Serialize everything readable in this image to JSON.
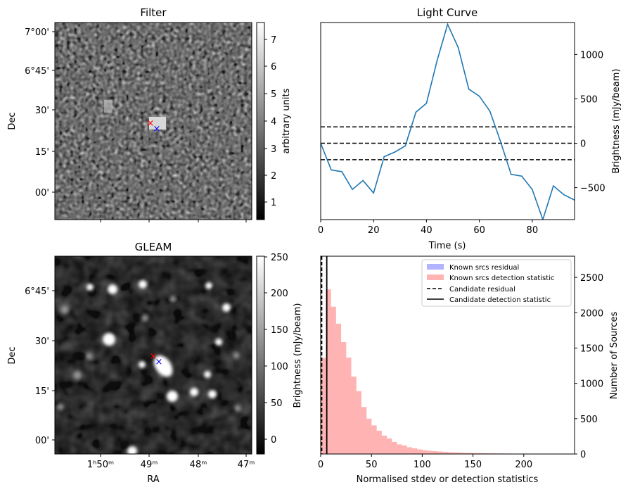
{
  "figure": {
    "filter_panel": {
      "title": "Filter",
      "ylabel": "Dec",
      "yticks": [
        "7°00'",
        "6°45'",
        "30'",
        "15'",
        "00'"
      ],
      "colorbar": {
        "label": "arbitrary units",
        "ticks": [
          "1",
          "2",
          "3",
          "4",
          "5",
          "6",
          "7"
        ],
        "range": [
          0.3,
          7.6
        ]
      },
      "markers": [
        {
          "symbol": "×",
          "color": "#ff0000"
        },
        {
          "symbol": "×",
          "color": "#0000ff"
        }
      ]
    },
    "gleam_panel": {
      "title": "GLEAM",
      "xlabel": "RA",
      "ylabel": "Dec",
      "xticks": [
        "1ʰ50ᵐ",
        "49ᵐ",
        "48ᵐ",
        "47ᵐ"
      ],
      "yticks": [
        "6°45'",
        "30'",
        "15'",
        "00'"
      ],
      "colorbar": {
        "label": "Brightness (mJy/beam)",
        "ticks": [
          "0",
          "50",
          "100",
          "150",
          "200",
          "250"
        ],
        "range": [
          -20,
          250
        ]
      },
      "markers": [
        {
          "symbol": "×",
          "color": "#ff0000"
        },
        {
          "symbol": "×",
          "color": "#0000ff"
        }
      ]
    }
  },
  "chart_data": [
    {
      "type": "line",
      "title": "Light Curve",
      "xlabel": "Time (s)",
      "ylabel": "Brightness (mJy/beam)",
      "xlim": [
        0,
        96
      ],
      "ylim": [
        -860,
        1360
      ],
      "xticks": [
        0,
        20,
        40,
        60,
        80
      ],
      "yticks": [
        -500,
        0,
        500,
        1000
      ],
      "series": [
        {
          "color": "#1f77b4",
          "x": [
            0,
            4,
            8,
            12,
            16,
            20,
            24,
            28,
            32,
            36,
            40,
            44,
            48,
            52,
            56,
            60,
            64,
            68,
            72,
            76,
            80,
            84,
            88,
            92,
            96
          ],
          "y": [
            0,
            -300,
            -320,
            -520,
            -420,
            -560,
            -150,
            -100,
            -30,
            350,
            450,
            930,
            1340,
            1080,
            610,
            530,
            360,
            20,
            -350,
            -370,
            -520,
            -860,
            -480,
            -580,
            -640
          ]
        }
      ],
      "hlines": [
        185,
        0,
        -185
      ]
    },
    {
      "type": "bar",
      "xlabel": "Normalised stdev or detection statistics",
      "ylabel": "Number of Sources",
      "xlim": [
        0,
        250
      ],
      "ylim": [
        0,
        2800
      ],
      "xticks": [
        0,
        50,
        100,
        150,
        200
      ],
      "yticks": [
        0,
        500,
        1000,
        1500,
        2000,
        2500
      ],
      "bin_width": 5,
      "series": [
        {
          "name": "Known srcs residual",
          "color": "#b3b3ff",
          "bins": [
            0
          ],
          "values": [
            150
          ]
        },
        {
          "name": "Known srcs detection statistic",
          "color": "#ffb3b3",
          "bins": [
            0,
            5,
            10,
            15,
            20,
            25,
            30,
            35,
            40,
            45,
            50,
            55,
            60,
            65,
            70,
            75,
            80,
            85,
            90,
            95,
            100,
            105,
            110,
            115,
            120,
            125,
            130,
            135,
            140,
            145,
            150,
            155,
            160,
            165,
            170,
            175,
            180,
            185,
            190,
            195,
            200,
            205,
            210,
            215,
            220,
            225,
            230
          ],
          "values": [
            1360,
            2330,
            2085,
            1845,
            1585,
            1365,
            1095,
            890,
            665,
            500,
            405,
            330,
            260,
            220,
            170,
            135,
            120,
            95,
            80,
            65,
            55,
            45,
            40,
            35,
            30,
            25,
            22,
            20,
            17,
            15,
            13,
            12,
            10,
            9,
            8,
            7,
            6,
            6,
            5,
            5,
            4,
            4,
            3,
            3,
            3,
            2,
            2
          ]
        }
      ],
      "vlines": [
        {
          "name": "Candidate residual",
          "x": 1,
          "style": "dashed"
        },
        {
          "name": "Candidate detection statistic",
          "x": 6,
          "style": "solid"
        }
      ],
      "legend": "top-right"
    }
  ]
}
